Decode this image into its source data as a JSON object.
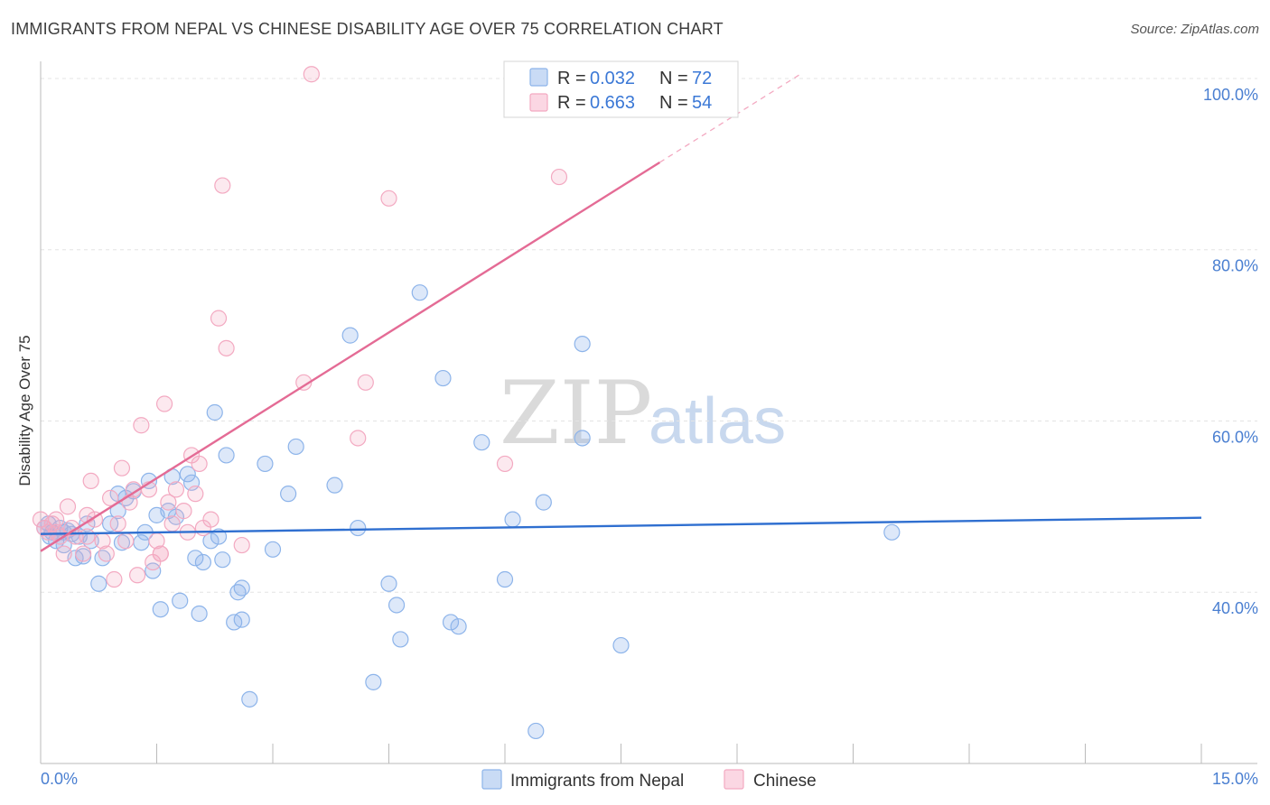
{
  "header": {
    "title": "IMMIGRANTS FROM NEPAL VS CHINESE DISABILITY AGE OVER 75 CORRELATION CHART",
    "source": "Source: ZipAtlas.com"
  },
  "watermark": {
    "zip": "ZIP",
    "atlas": "atlas"
  },
  "legend": {
    "rows": [
      {
        "r_label": "R = ",
        "r_value": "0.032",
        "n_label": "N = ",
        "n_value": "72",
        "color": "#8db4ea"
      },
      {
        "r_label": "R = ",
        "r_value": "0.663",
        "n_label": "N = ",
        "n_value": "54",
        "color": "#f3a9c1"
      }
    ]
  },
  "chart_data": {
    "type": "scatter",
    "title": "IMMIGRANTS FROM NEPAL VS CHINESE DISABILITY AGE OVER 75 CORRELATION CHART",
    "xlabel": "",
    "ylabel": "Disability Age Over 75",
    "xlim": [
      0,
      15
    ],
    "ylim": [
      20,
      102
    ],
    "x_tick_labels": [
      "0.0%",
      "15.0%"
    ],
    "y_ticks": [
      40,
      60,
      80,
      100
    ],
    "y_tick_labels": [
      "40.0%",
      "60.0%",
      "80.0%",
      "100.0%"
    ],
    "grid": true,
    "series": [
      {
        "name": "Immigrants from Nepal",
        "color": "#8db4ea",
        "line_color": "#2f6fd0",
        "trend": {
          "x": [
            0,
            15
          ],
          "y": [
            46.8,
            48.7
          ]
        },
        "points": [
          [
            0.05,
            47.5
          ],
          [
            0.1,
            48
          ],
          [
            0.12,
            46.5
          ],
          [
            0.15,
            47
          ],
          [
            0.2,
            46
          ],
          [
            0.25,
            47.5
          ],
          [
            0.3,
            47
          ],
          [
            0.35,
            47.2
          ],
          [
            0.4,
            46.8
          ],
          [
            0.45,
            44
          ],
          [
            0.5,
            46.5
          ],
          [
            0.55,
            44.2
          ],
          [
            0.6,
            48
          ],
          [
            0.65,
            46
          ],
          [
            0.75,
            41
          ],
          [
            0.8,
            44
          ],
          [
            1.0,
            49.5
          ],
          [
            1.0,
            51.5
          ],
          [
            1.05,
            45.8
          ],
          [
            1.1,
            51
          ],
          [
            1.2,
            51.8
          ],
          [
            1.3,
            45.8
          ],
          [
            1.35,
            47
          ],
          [
            1.4,
            53
          ],
          [
            1.45,
            42.5
          ],
          [
            1.5,
            49
          ],
          [
            1.55,
            38
          ],
          [
            1.65,
            49.5
          ],
          [
            1.7,
            53.5
          ],
          [
            1.8,
            39
          ],
          [
            1.9,
            53.8
          ],
          [
            1.95,
            52.8
          ],
          [
            2.0,
            44
          ],
          [
            2.05,
            37.5
          ],
          [
            2.1,
            43.5
          ],
          [
            2.2,
            46
          ],
          [
            2.3,
            46.5
          ],
          [
            2.35,
            43.8
          ],
          [
            2.25,
            61
          ],
          [
            2.4,
            56
          ],
          [
            2.5,
            36.5
          ],
          [
            2.55,
            40
          ],
          [
            2.6,
            36.8
          ],
          [
            2.6,
            40.5
          ],
          [
            2.7,
            27.5
          ],
          [
            2.9,
            55
          ],
          [
            3.0,
            45
          ],
          [
            3.2,
            51.5
          ],
          [
            3.3,
            57
          ],
          [
            3.8,
            52.5
          ],
          [
            4.0,
            70
          ],
          [
            4.1,
            47.5
          ],
          [
            4.3,
            29.5
          ],
          [
            4.5,
            41
          ],
          [
            4.6,
            38.5
          ],
          [
            4.65,
            34.5
          ],
          [
            4.9,
            75
          ],
          [
            5.2,
            65
          ],
          [
            5.3,
            36.5
          ],
          [
            5.4,
            36
          ],
          [
            5.7,
            57.5
          ],
          [
            6.0,
            41.5
          ],
          [
            6.1,
            48.5
          ],
          [
            6.4,
            23.8
          ],
          [
            6.5,
            50.5
          ],
          [
            7.0,
            58
          ],
          [
            7.0,
            69
          ],
          [
            7.5,
            33.8
          ],
          [
            11.0,
            47
          ],
          [
            0.3,
            45.5
          ],
          [
            0.9,
            48
          ],
          [
            1.75,
            48.8
          ]
        ]
      },
      {
        "name": "Chinese",
        "color": "#f3a9c1",
        "line_color": "#e46b95",
        "trend": {
          "x": [
            0,
            8.0
          ],
          "y": [
            44.8,
            90.2
          ]
        },
        "trend_extension": {
          "x": [
            8.0,
            9.8
          ],
          "y": [
            90.2,
            100.4
          ]
        },
        "points": [
          [
            0.0,
            48.5
          ],
          [
            0.05,
            47.5
          ],
          [
            0.1,
            47
          ],
          [
            0.15,
            48
          ],
          [
            0.2,
            48.5
          ],
          [
            0.25,
            46.5
          ],
          [
            0.3,
            44.5
          ],
          [
            0.35,
            50
          ],
          [
            0.4,
            47.5
          ],
          [
            0.45,
            46.5
          ],
          [
            0.55,
            44.5
          ],
          [
            0.6,
            49
          ],
          [
            0.65,
            53
          ],
          [
            0.7,
            48.5
          ],
          [
            0.8,
            46
          ],
          [
            0.85,
            44.5
          ],
          [
            0.9,
            51
          ],
          [
            0.95,
            41.5
          ],
          [
            1.0,
            48
          ],
          [
            1.05,
            54.5
          ],
          [
            1.1,
            46
          ],
          [
            1.15,
            50.5
          ],
          [
            1.2,
            52
          ],
          [
            1.25,
            42
          ],
          [
            1.3,
            59.5
          ],
          [
            1.4,
            52
          ],
          [
            1.45,
            43.5
          ],
          [
            1.5,
            46
          ],
          [
            1.55,
            44.5
          ],
          [
            1.6,
            62
          ],
          [
            1.65,
            50.5
          ],
          [
            1.7,
            48
          ],
          [
            1.75,
            52
          ],
          [
            1.85,
            49.5
          ],
          [
            1.9,
            47
          ],
          [
            1.95,
            56
          ],
          [
            2.0,
            51.5
          ],
          [
            2.05,
            55
          ],
          [
            2.1,
            47.5
          ],
          [
            2.2,
            48.5
          ],
          [
            2.3,
            72
          ],
          [
            2.35,
            87.5
          ],
          [
            2.4,
            68.5
          ],
          [
            2.6,
            45.5
          ],
          [
            3.4,
            64.5
          ],
          [
            3.5,
            100.5
          ],
          [
            4.1,
            58
          ],
          [
            4.2,
            64.5
          ],
          [
            4.5,
            86
          ],
          [
            6.0,
            55
          ],
          [
            6.7,
            88.5
          ],
          [
            1.55,
            44.5
          ],
          [
            0.6,
            46.5
          ],
          [
            0.2,
            47
          ]
        ]
      }
    ]
  }
}
